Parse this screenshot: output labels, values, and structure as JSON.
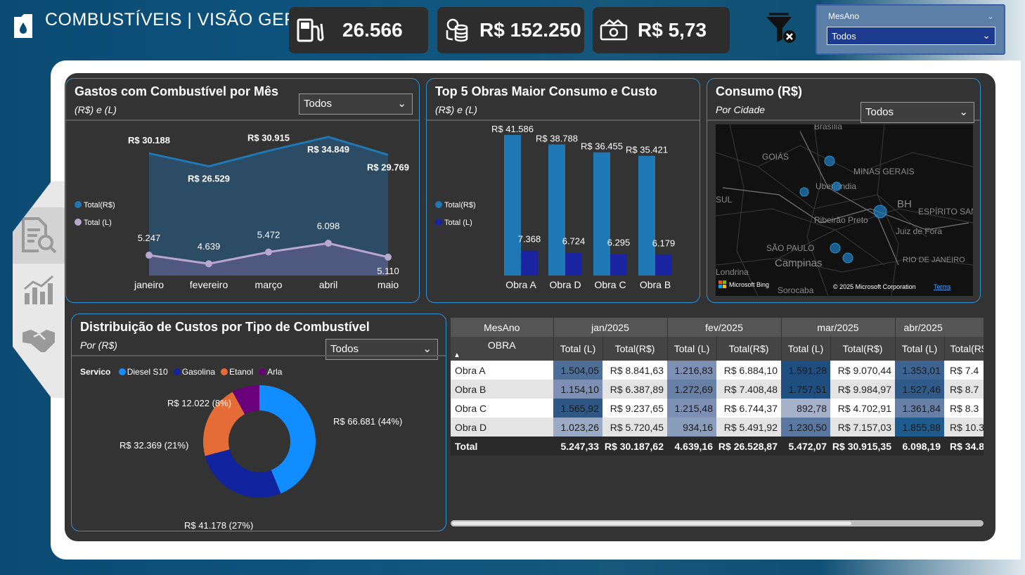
{
  "header": {
    "title": "COMBUSTÍVEIS | VISÃO GERAL",
    "kpis": [
      {
        "icon": "fuel-pump-icon",
        "value": "26.566"
      },
      {
        "icon": "coins-icon",
        "value": "R$ 152.250"
      },
      {
        "icon": "money-icon",
        "value": "R$ 5,73"
      }
    ],
    "slicer": {
      "label": "MesAno",
      "value": "Todos"
    }
  },
  "nav": [
    "report-search-icon",
    "bar-chart-icon",
    "handshake-icon"
  ],
  "colors": {
    "accent": "#2a93d5",
    "canvas": "#333333",
    "total_rs": "#1f77b4",
    "total_l": "#1a24a0",
    "diesel": "#118dff",
    "gasolina": "#12239e",
    "etanol": "#e66c37",
    "arla": "#6b007b"
  },
  "cards": {
    "monthly": {
      "title": "Gastos com Combustível por Mês",
      "subtitle": "(R$) e (L)",
      "dropdown": "Todos",
      "legend": [
        "Total(R$)",
        "Total (L)"
      ]
    },
    "top5": {
      "title": "Top 5 Obras Maior Consumo e Custo",
      "subtitle": "(R$) e (L)",
      "legend": [
        "Total(R$)",
        "Total (L)"
      ]
    },
    "map": {
      "title": "Consumo (R$)",
      "subtitle": "Por Cidade",
      "dropdown": "Todos",
      "labels": [
        "Brasília",
        "GOIÁS",
        "MINAS GERAIS",
        "Uberlândia",
        "SUL",
        "BH",
        "ESPÍRITO SAN",
        "Ribeirão Preto",
        "Juiz de Fora",
        "SÃO PAULO",
        "Campinas",
        "RIO DE JANEIRO",
        "Londrina",
        "Sorocaba"
      ],
      "bing": "Microsoft Bing",
      "copyright": "© 2025 Microsoft Corporation",
      "terms": "Terms"
    },
    "donut": {
      "title": "Distribuição de Custos por Tipo de Combustível",
      "subtitle": "Por (R$)",
      "dropdown": "Todos",
      "legend_title": "Servico"
    }
  },
  "chart_data": [
    {
      "type": "line",
      "categories": [
        "janeiro",
        "fevereiro",
        "março",
        "abril",
        "maio"
      ],
      "series": [
        {
          "name": "Total(R$)",
          "values": [
            30188,
            26529,
            30915,
            34849,
            29769
          ],
          "labels": [
            "R$ 30.188",
            "R$ 26.529",
            "R$ 30.915",
            "R$ 34.849",
            "R$ 29.769"
          ]
        },
        {
          "name": "Total (L)",
          "values": [
            5247,
            4639,
            5472,
            6098,
            5110
          ],
          "labels": [
            "5.247",
            "4.639",
            "5.472",
            "6.098",
            "5.110"
          ]
        }
      ]
    },
    {
      "type": "bar",
      "categories": [
        "Obra A",
        "Obra D",
        "Obra C",
        "Obra B"
      ],
      "series": [
        {
          "name": "Total(R$)",
          "values": [
            41586,
            38788,
            36455,
            35421
          ],
          "labels": [
            "R$ 41.586",
            "R$ 38.788",
            "R$ 36.455",
            "R$ 35.421"
          ]
        },
        {
          "name": "Total (L)",
          "values": [
            7368,
            6724,
            6295,
            6179
          ],
          "labels": [
            "7.368",
            "6.724",
            "6.295",
            "6.179"
          ]
        }
      ]
    },
    {
      "type": "pie",
      "categories": [
        "Diesel S10",
        "Gasolina",
        "Etanol",
        "Arla"
      ],
      "values": [
        66681,
        41178,
        32369,
        12022
      ],
      "labels": [
        "R$ 66.681 (44%)",
        "R$ 41.178 (27%)",
        "R$ 32.369 (21%)",
        "R$ 12.022 (8%)"
      ]
    },
    {
      "type": "table",
      "month_header": "MesAno",
      "row_header": "OBRA",
      "months": [
        "jan/2025",
        "fev/2025",
        "mar/2025",
        "abr/2025"
      ],
      "measure_headers": [
        "Total (L)",
        "Total(R$)"
      ],
      "rows": [
        {
          "obra": "Obra A",
          "values": [
            "1.504,05",
            "R$ 8.841,63",
            "1.216,83",
            "R$ 6.884,10",
            "1.591,28",
            "R$ 9.070,44",
            "1.353,01",
            "R$ 7.4"
          ]
        },
        {
          "obra": "Obra B",
          "values": [
            "1.154,10",
            "R$ 6.387,89",
            "1.272,69",
            "R$ 7.408,48",
            "1.757,51",
            "R$ 9.984,97",
            "1.527,46",
            "R$ 8.7"
          ]
        },
        {
          "obra": "Obra C",
          "values": [
            "1.565,92",
            "R$ 9.237,65",
            "1.215,48",
            "R$ 6.744,37",
            "892,78",
            "R$ 4.702,91",
            "1.361,84",
            "R$ 8.3"
          ]
        },
        {
          "obra": "Obra D",
          "values": [
            "1.023,26",
            "R$ 5.720,45",
            "934,16",
            "R$ 5.491,92",
            "1.230,50",
            "R$ 7.157,03",
            "1.855,88",
            "R$ 10.3"
          ]
        }
      ],
      "total": {
        "label": "Total",
        "values": [
          "5.247,33",
          "R$ 30.187,62",
          "4.639,16",
          "R$ 26.528,87",
          "5.472,07",
          "R$ 30.915,35",
          "6.098,19",
          "R$ 34.8"
        ]
      }
    }
  ]
}
